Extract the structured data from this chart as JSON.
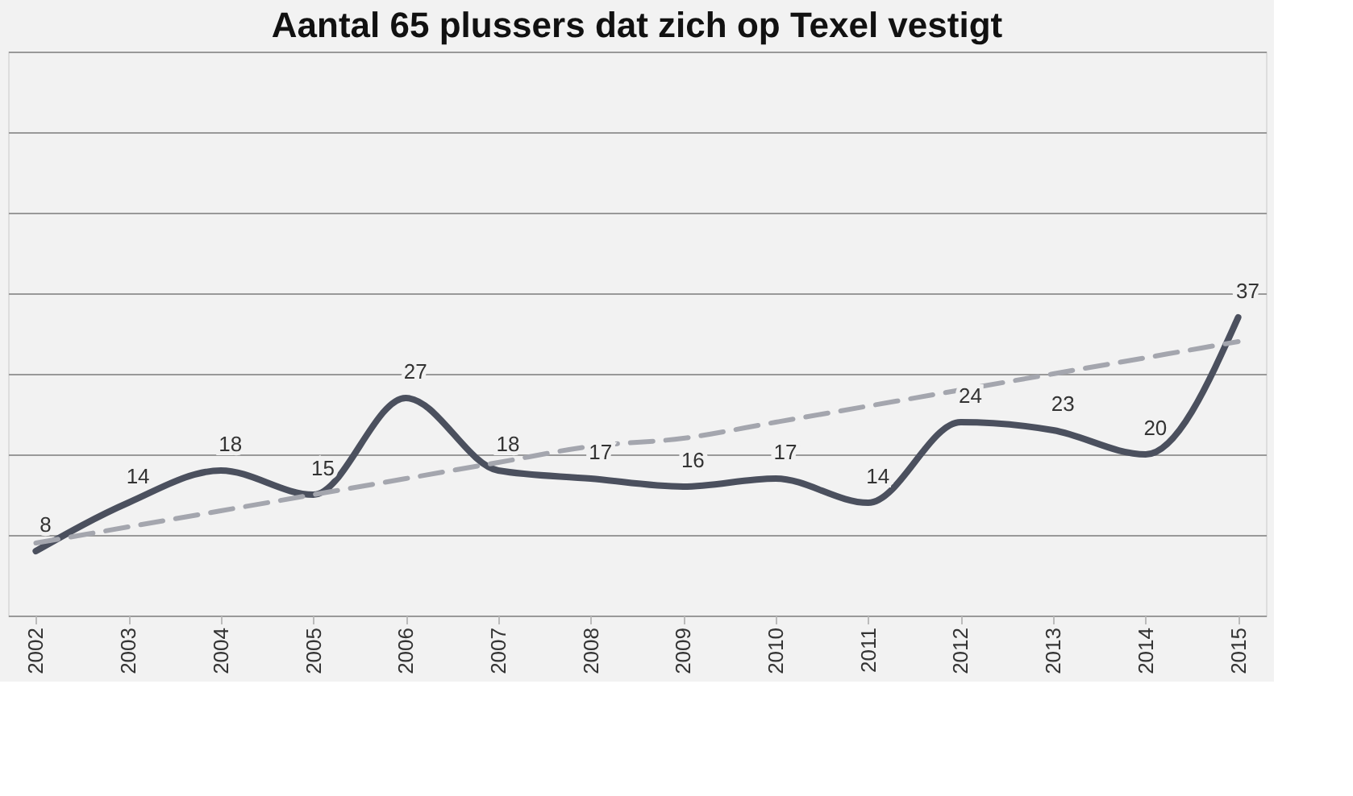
{
  "chart_data": {
    "type": "line",
    "title": "Aantal 65 plussers dat zich op Texel vestigt",
    "categories": [
      "2002",
      "2003",
      "2004",
      "2005",
      "2006",
      "2007",
      "2008",
      "2009",
      "2010",
      "2011",
      "2012",
      "2013",
      "2014",
      "2015"
    ],
    "series": [
      {
        "color": "#4b505e",
        "values": [
          8,
          14,
          18,
          15,
          27,
          18,
          17,
          16,
          17,
          14,
          24,
          23,
          20,
          37
        ],
        "value_labels": [
          "8",
          "14",
          "18",
          "15",
          "27",
          "18",
          "17",
          "16",
          "17",
          "14",
          "24",
          "23",
          "20",
          "37"
        ],
        "line_style": "solid"
      },
      {
        "type": "line",
        "color": "#a4a6ae",
        "values": [
          9,
          11,
          13,
          15,
          17,
          19,
          21,
          22,
          24,
          26,
          28,
          30,
          32,
          34
        ],
        "line_style": "dashed"
      }
    ],
    "ylim": [
      0,
      70
    ],
    "yticks": [
      {
        "value": 0,
        "label": null
      },
      {
        "value": 10,
        "label": null
      },
      {
        "value": 20,
        "label": null
      },
      {
        "value": 30,
        "label": null
      },
      {
        "value": 40,
        "label": null
      },
      {
        "value": 50,
        "label": null
      },
      {
        "value": 60,
        "label": null
      },
      {
        "value": 70,
        "label": null
      }
    ],
    "grid": "y",
    "tick_labels": "x",
    "marker": "none"
  }
}
